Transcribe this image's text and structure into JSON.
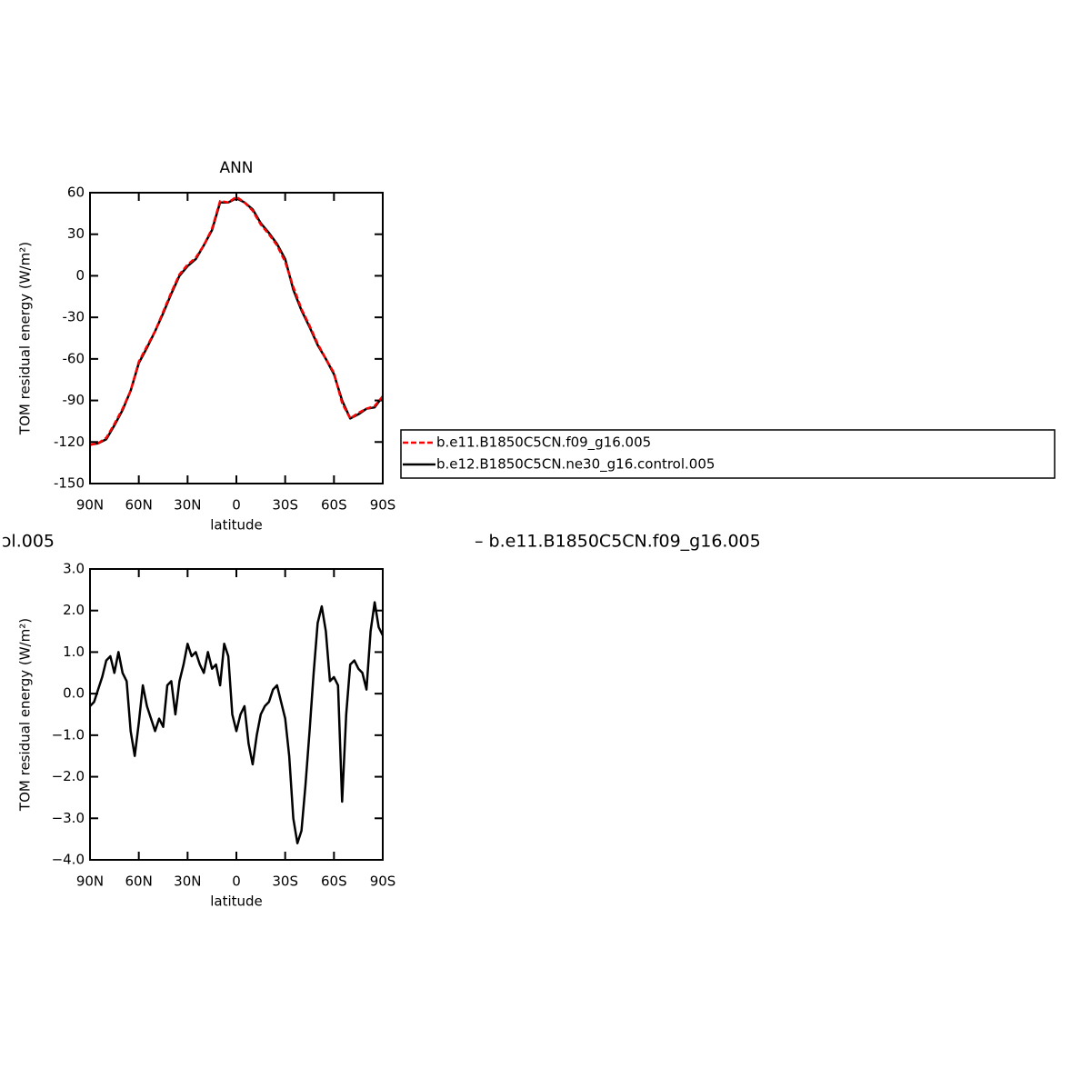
{
  "chart_data": [
    {
      "type": "line",
      "title": "ANN",
      "xlabel": "latitude",
      "ylabel": "TOM residual energy (W/m²)",
      "x": [
        90,
        85,
        80,
        75,
        70,
        65,
        60,
        55,
        50,
        45,
        40,
        35,
        30,
        25,
        20,
        15,
        10,
        5,
        0,
        -5,
        -10,
        -15,
        -20,
        -25,
        -30,
        -35,
        -40,
        -45,
        -50,
        -55,
        -60,
        -65,
        -70,
        -75,
        -80,
        -85,
        -90
      ],
      "series": [
        {
          "name": "b.e11.B1850C5CN.f09_g16.005",
          "color": "#ff0000",
          "style": "dashed",
          "values": [
            -122,
            -121,
            -117,
            -107,
            -96,
            -83,
            -62,
            -51,
            -40,
            -26,
            -12,
            1,
            8,
            13,
            22,
            34,
            54,
            53,
            57,
            53,
            47,
            37,
            30,
            22,
            10,
            -8,
            -24,
            -36,
            -49,
            -60,
            -70,
            -92,
            -103,
            -99,
            -96,
            -94,
            -87
          ]
        },
        {
          "name": "b.e12.B1850C5CN.ne30_g16.control.005",
          "color": "#000000",
          "style": "solid",
          "values": [
            -122,
            -121,
            -118,
            -108,
            -97,
            -83,
            -63,
            -52,
            -40,
            -27,
            -13,
            0,
            7,
            12,
            22,
            33,
            53,
            53,
            56,
            53,
            48,
            38,
            31,
            23,
            12,
            -10,
            -25,
            -37,
            -50,
            -60,
            -71,
            -90,
            -103,
            -100,
            -96,
            -95,
            -87
          ]
        }
      ],
      "xlim": [
        90,
        -90
      ],
      "xticks": [
        {
          "value": 90,
          "label": "90N"
        },
        {
          "value": 60,
          "label": "60N"
        },
        {
          "value": 30,
          "label": "30N"
        },
        0,
        {
          "value": -30,
          "label": "30S"
        },
        {
          "value": -60,
          "label": "60S"
        },
        {
          "value": -90,
          "label": "90S"
        }
      ],
      "ylim": [
        -150,
        60
      ],
      "yticks": [
        -150,
        -120,
        -90,
        -60,
        -30,
        0,
        30,
        60
      ],
      "legend": "right"
    },
    {
      "type": "line",
      "title_parts": [
        "ɔl.005",
        "– b.e11.B1850C5CN.f09_g16.005"
      ],
      "xlabel": "latitude",
      "ylabel": "TOM residual energy (W/m²)",
      "x": [
        90,
        87.5,
        85,
        82.5,
        80,
        77.5,
        75,
        72.5,
        70,
        67.5,
        65,
        62.5,
        60,
        57.5,
        55,
        52.5,
        50,
        47.5,
        45,
        42.5,
        40,
        37.5,
        35,
        32.5,
        30,
        27.5,
        25,
        22.5,
        20,
        17.5,
        15,
        12.5,
        10,
        7.5,
        5,
        2.5,
        0,
        -2.5,
        -5,
        -7.5,
        -10,
        -12.5,
        -15,
        -17.5,
        -20,
        -22.5,
        -25,
        -27.5,
        -30,
        -32.5,
        -35,
        -37.5,
        -40,
        -42.5,
        -45,
        -47.5,
        -50,
        -52.5,
        -55,
        -57.5,
        -60,
        -62.5,
        -65,
        -67.5,
        -70,
        -72.5,
        -75,
        -77.5,
        -80,
        -82.5,
        -85,
        -87.5,
        -90
      ],
      "color": "#000000",
      "values": [
        -0.3,
        -0.2,
        0.1,
        0.4,
        0.8,
        0.9,
        0.5,
        1.0,
        0.5,
        0.3,
        -0.9,
        -1.5,
        -0.7,
        0.2,
        -0.3,
        -0.6,
        -0.9,
        -0.6,
        -0.8,
        0.2,
        0.3,
        -0.5,
        0.3,
        0.7,
        1.2,
        0.9,
        1.0,
        0.7,
        0.5,
        1.0,
        0.6,
        0.7,
        0.2,
        1.2,
        0.9,
        -0.5,
        -0.9,
        -0.5,
        -0.3,
        -1.2,
        -1.7,
        -1.0,
        -0.5,
        -0.3,
        -0.2,
        0.1,
        0.2,
        -0.2,
        -0.6,
        -1.5,
        -3.0,
        -3.6,
        -3.3,
        -2.2,
        -0.9,
        0.5,
        1.7,
        2.1,
        1.5,
        0.3,
        0.4,
        0.2,
        -2.6,
        -0.5,
        0.7,
        0.8,
        0.6,
        0.5,
        0.1,
        1.5,
        2.2,
        1.6,
        1.4
      ],
      "xlim": [
        90,
        -90
      ],
      "xticks": [
        {
          "value": 90,
          "label": "90N"
        },
        {
          "value": 60,
          "label": "60N"
        },
        {
          "value": 30,
          "label": "30N"
        },
        0,
        {
          "value": -30,
          "label": "30S"
        },
        {
          "value": -60,
          "label": "60S"
        },
        {
          "value": -90,
          "label": "90S"
        }
      ],
      "ylim": [
        -4,
        3
      ],
      "yticks": [
        {
          "value": -4,
          "label": "−4.0"
        },
        {
          "value": -3,
          "label": "−3.0"
        },
        {
          "value": -2,
          "label": "−2.0"
        },
        {
          "value": -1,
          "label": "−1.0"
        },
        {
          "value": 0,
          "label": "0.0"
        },
        {
          "value": 1,
          "label": "1.0"
        },
        {
          "value": 2,
          "label": "2.0"
        },
        {
          "value": 3,
          "label": "3.0"
        }
      ]
    }
  ]
}
